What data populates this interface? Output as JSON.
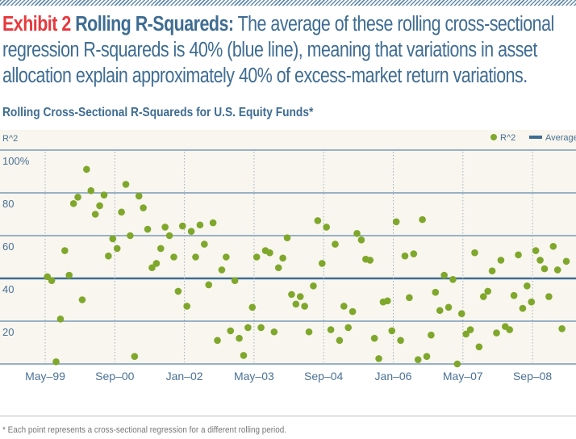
{
  "header": {
    "exhibit": "Exhibit 2",
    "title": "Rolling R-Squareds:",
    "description": "The average of these rolling cross-sectional regression R-squareds is 40% (blue line), meaning that variations in asset allocation explain approximately 40% of excess-market return variations."
  },
  "colors": {
    "accent_red": "#e8383d",
    "brand_blue": "#3e6c93",
    "point_green": "#7fa72b",
    "chart_bg": "#f8f6ee"
  },
  "footnote": "* Each point represents a cross-sectional regression for a different rolling period.",
  "chart_data": {
    "type": "scatter",
    "title": "Rolling Cross-Sectional R-Squareds for U.S. Equity Funds*",
    "ylabel": "R^2",
    "xlabel": "",
    "ylim": [
      0,
      100
    ],
    "yticks": [
      100,
      80,
      60,
      40,
      20
    ],
    "ytick_labels": [
      "100%",
      "80",
      "60",
      "40",
      "20"
    ],
    "xtick_labels": [
      "May–99",
      "Sep–00",
      "Jan–02",
      "May–03",
      "Sep–04",
      "Jan–06",
      "May–07",
      "Sep–08"
    ],
    "xtick_month_index": [
      0,
      16,
      32,
      48,
      64,
      80,
      96,
      112
    ],
    "first_point_month_index": 0.5,
    "legend": {
      "position": "top-right",
      "entries": [
        {
          "label": "R^2",
          "kind": "point"
        },
        {
          "label": "Average",
          "kind": "line"
        }
      ]
    },
    "average": 40,
    "grid": true,
    "series": [
      {
        "name": "R^2",
        "values": [
          40.8,
          39,
          1,
          21,
          53,
          41.5,
          75,
          78,
          30,
          91,
          81,
          70,
          74,
          79,
          50.5,
          58.5,
          54,
          71,
          84,
          60,
          3.5,
          78.5,
          73,
          63,
          45,
          47,
          54,
          64,
          60,
          50,
          34,
          64.5,
          27,
          62,
          50,
          65,
          56,
          37,
          66,
          11,
          44,
          50,
          15.5,
          39,
          12,
          4,
          17,
          26.5,
          50,
          17,
          53,
          52,
          15,
          45,
          49.5,
          59,
          32.5,
          28,
          31.5,
          27,
          15,
          36.5,
          67,
          47,
          64,
          16,
          56,
          11,
          27,
          17,
          24.5,
          61,
          58,
          49,
          48.5,
          12,
          2.5,
          29,
          29.5,
          15.5,
          66.5,
          11,
          50.5,
          31,
          51.5,
          2,
          67.5,
          3.5,
          13.5,
          33.5,
          25,
          41.5,
          26.5,
          39.5,
          0,
          23.5,
          14,
          16,
          52,
          8,
          31.5,
          34,
          43.5,
          14.5,
          48.5,
          17.5,
          16,
          32,
          51,
          26,
          36.5,
          29,
          53,
          48.5,
          44.5,
          31.5,
          55,
          44,
          16.5,
          48
        ]
      },
      {
        "name": "Average",
        "values": [
          40
        ]
      }
    ]
  }
}
